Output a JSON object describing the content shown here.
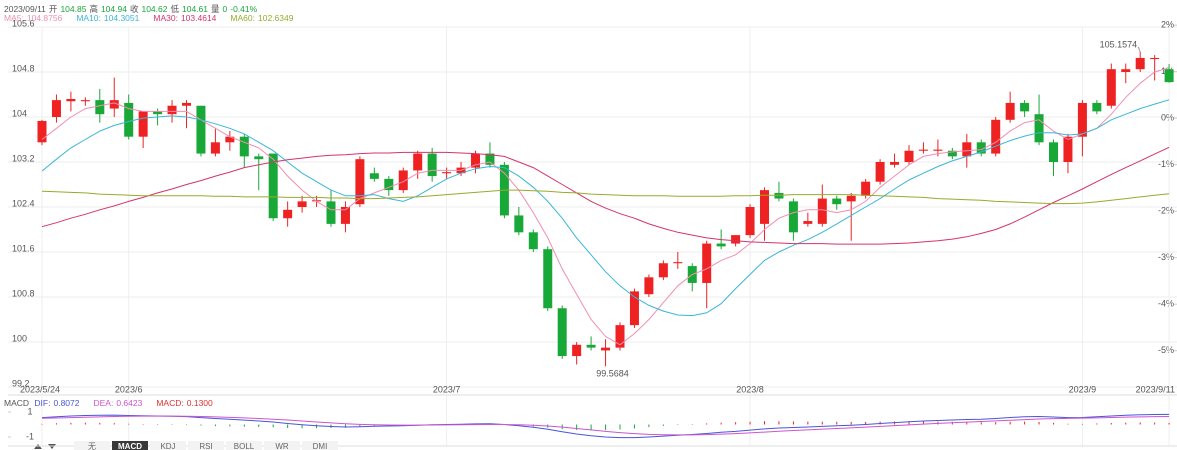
{
  "chart_data": {
    "type": "candlestick",
    "header": {
      "date": "2023/09/11",
      "open_label": "开",
      "high_label": "高",
      "close_label": "收",
      "low_label": "低",
      "volume_label": "量",
      "volume": 0,
      "change": {
        "value": -0.41,
        "label": "-0.41%"
      }
    },
    "categories": [
      "2023/5/24",
      null,
      null,
      null,
      null,
      null,
      "2023/6",
      null,
      null,
      null,
      null,
      null,
      null,
      null,
      null,
      null,
      null,
      null,
      null,
      null,
      null,
      null,
      null,
      null,
      null,
      null,
      null,
      null,
      "2023/7",
      null,
      null,
      null,
      null,
      null,
      null,
      null,
      null,
      null,
      null,
      null,
      null,
      null,
      null,
      null,
      null,
      null,
      null,
      null,
      null,
      "2023/8",
      null,
      null,
      null,
      null,
      null,
      null,
      null,
      null,
      null,
      null,
      null,
      null,
      null,
      null,
      null,
      null,
      null,
      null,
      null,
      null,
      null,
      null,
      "2023/9",
      null,
      null,
      null,
      null,
      null,
      "2023/9/11"
    ],
    "open": [
      103.55,
      104.0,
      104.28,
      104.28,
      104.3,
      104.15,
      104.25,
      103.65,
      104.1,
      104.05,
      104.2,
      104.2,
      103.35,
      103.55,
      103.65,
      103.3,
      103.35,
      102.2,
      102.4,
      102.5,
      102.5,
      102.1,
      102.45,
      103.0,
      102.9,
      102.7,
      103.05,
      103.35,
      103.0,
      103.0,
      103.1,
      103.35,
      103.15,
      102.25,
      101.95,
      101.65,
      100.6,
      99.75,
      99.95,
      99.85,
      99.9,
      100.3,
      100.85,
      101.15,
      101.4,
      101.35,
      101.05,
      101.75,
      101.75,
      101.9,
      102.1,
      102.65,
      102.5,
      102.1,
      102.1,
      102.55,
      102.5,
      102.6,
      102.85,
      103.15,
      103.2,
      103.4,
      103.4,
      103.4,
      103.3,
      103.55,
      103.35,
      103.95,
      104.25,
      104.05,
      103.55,
      103.2,
      103.65,
      104.25,
      104.2,
      104.8,
      104.85,
      105.03,
      104.85
    ],
    "high": [
      103.95,
      104.4,
      104.45,
      104.35,
      104.5,
      104.7,
      104.4,
      104.1,
      104.15,
      104.3,
      104.3,
      104.2,
      103.8,
      103.75,
      103.7,
      103.35,
      103.35,
      102.5,
      102.6,
      102.6,
      102.7,
      102.5,
      103.3,
      103.1,
      102.95,
      103.1,
      103.4,
      103.45,
      103.1,
      103.2,
      103.4,
      103.55,
      103.2,
      102.4,
      102.0,
      101.7,
      100.65,
      100.0,
      100.1,
      100.05,
      100.35,
      100.95,
      101.2,
      101.45,
      101.6,
      101.4,
      101.8,
      102.0,
      101.9,
      102.45,
      102.75,
      102.85,
      102.55,
      102.3,
      102.8,
      102.6,
      102.65,
      102.9,
      103.25,
      103.35,
      103.5,
      103.55,
      103.6,
      103.45,
      103.7,
      103.6,
      104.0,
      104.45,
      104.3,
      104.4,
      103.6,
      103.7,
      104.3,
      104.3,
      104.95,
      104.95,
      105.1574,
      105.1,
      104.94
    ],
    "low": [
      103.5,
      103.9,
      104.1,
      104.2,
      103.9,
      104.0,
      103.6,
      103.45,
      103.85,
      103.9,
      103.8,
      103.3,
      103.3,
      103.4,
      103.1,
      102.7,
      102.15,
      102.05,
      102.3,
      102.4,
      102.05,
      101.95,
      102.4,
      102.85,
      102.6,
      102.65,
      102.9,
      102.85,
      102.9,
      102.95,
      103.0,
      103.1,
      102.2,
      101.9,
      101.6,
      100.55,
      99.7,
      99.6,
      99.85,
      99.5684,
      99.85,
      100.25,
      100.8,
      101.1,
      101.3,
      100.9,
      100.6,
      101.65,
      101.7,
      101.85,
      101.8,
      102.5,
      101.8,
      102.05,
      102.05,
      102.35,
      101.8,
      102.55,
      102.8,
      103.1,
      103.15,
      103.35,
      103.3,
      103.25,
      103.1,
      103.3,
      103.3,
      103.9,
      104.0,
      103.5,
      102.95,
      103.0,
      103.3,
      104.05,
      104.15,
      104.6,
      104.8,
      104.65,
      104.61
    ],
    "close": [
      103.93,
      104.3,
      104.32,
      104.3,
      104.05,
      104.3,
      103.65,
      104.1,
      104.05,
      104.2,
      104.25,
      103.35,
      103.55,
      103.65,
      103.3,
      103.25,
      102.2,
      102.35,
      102.5,
      102.52,
      102.1,
      102.4,
      103.25,
      102.9,
      102.7,
      103.05,
      103.35,
      102.95,
      103.02,
      103.1,
      103.35,
      103.15,
      102.25,
      101.95,
      101.65,
      100.6,
      99.75,
      99.95,
      99.9,
      99.9,
      100.3,
      100.9,
      101.15,
      101.4,
      101.42,
      101.05,
      101.75,
      101.7,
      101.9,
      102.4,
      102.7,
      102.55,
      101.95,
      102.15,
      102.55,
      102.45,
      102.6,
      102.85,
      103.2,
      103.2,
      103.4,
      103.42,
      103.42,
      103.3,
      103.55,
      103.35,
      103.95,
      104.25,
      104.1,
      103.55,
      103.2,
      103.65,
      104.25,
      104.1,
      104.85,
      104.85,
      105.05,
      105.05,
      104.62
    ],
    "up_color": "#ee2222",
    "down_color": "#18a838",
    "series": [
      {
        "name": "MA5",
        "color": "#f08fb1",
        "values": [
          103.6,
          103.8,
          104.0,
          104.15,
          104.2,
          104.25,
          104.15,
          104.1,
          104.1,
          104.1,
          104.1,
          103.95,
          103.8,
          103.65,
          103.55,
          103.45,
          103.25,
          102.95,
          102.7,
          102.5,
          102.35,
          102.35,
          102.55,
          102.65,
          102.75,
          102.85,
          103.0,
          103.05,
          103.05,
          103.05,
          103.15,
          103.2,
          103.0,
          102.7,
          102.3,
          101.85,
          101.3,
          100.85,
          100.4,
          100.1,
          99.95,
          100.15,
          100.4,
          100.7,
          101.0,
          101.2,
          101.3,
          101.45,
          101.55,
          101.75,
          102.0,
          102.2,
          102.3,
          102.35,
          102.35,
          102.3,
          102.35,
          102.5,
          102.75,
          102.95,
          103.15,
          103.3,
          103.35,
          103.38,
          103.4,
          103.42,
          103.55,
          103.75,
          103.9,
          103.95,
          103.75,
          103.6,
          103.7,
          103.8,
          104.05,
          104.35,
          104.6,
          104.8,
          104.8756
        ]
      },
      {
        "name": "MA10",
        "color": "#3ab6d8",
        "values": [
          103.04,
          103.25,
          103.45,
          103.6,
          103.75,
          103.85,
          103.92,
          103.98,
          104.0,
          104.02,
          104.0,
          103.95,
          103.88,
          103.8,
          103.7,
          103.55,
          103.4,
          103.2,
          103.0,
          102.85,
          102.7,
          102.6,
          102.6,
          102.62,
          102.55,
          102.5,
          102.6,
          102.75,
          102.9,
          103.0,
          103.08,
          103.12,
          103.1,
          102.95,
          102.75,
          102.5,
          102.2,
          101.85,
          101.55,
          101.25,
          101.0,
          100.8,
          100.65,
          100.55,
          100.48,
          100.47,
          100.52,
          100.68,
          100.95,
          101.2,
          101.45,
          101.6,
          101.72,
          101.82,
          101.95,
          102.1,
          102.25,
          102.4,
          102.55,
          102.72,
          102.88,
          103.0,
          103.12,
          103.22,
          103.3,
          103.38,
          103.48,
          103.58,
          103.66,
          103.72,
          103.72,
          103.68,
          103.7,
          103.8,
          103.95,
          104.05,
          104.15,
          104.23,
          104.3051
        ]
      },
      {
        "name": "MA30",
        "color": "#d6336c",
        "values": [
          102.05,
          102.12,
          102.2,
          102.27,
          102.35,
          102.42,
          102.5,
          102.57,
          102.65,
          102.72,
          102.8,
          102.87,
          102.95,
          103.02,
          103.1,
          103.15,
          103.2,
          103.24,
          103.27,
          103.3,
          103.32,
          103.33,
          103.35,
          103.36,
          103.36,
          103.37,
          103.37,
          103.37,
          103.37,
          103.36,
          103.35,
          103.33,
          103.3,
          103.2,
          103.1,
          102.95,
          102.8,
          102.65,
          102.5,
          102.38,
          102.28,
          102.2,
          102.1,
          102.02,
          101.95,
          101.9,
          101.85,
          101.82,
          101.8,
          101.78,
          101.77,
          101.76,
          101.75,
          101.75,
          101.75,
          101.74,
          101.74,
          101.74,
          101.74,
          101.75,
          101.76,
          101.78,
          101.8,
          101.83,
          101.87,
          101.93,
          102.0,
          102.1,
          102.22,
          102.35,
          102.48,
          102.6,
          102.72,
          102.85,
          102.98,
          103.1,
          103.22,
          103.34,
          103.4614
        ]
      },
      {
        "name": "MA60",
        "color": "#9aaa2c",
        "values": [
          102.68,
          102.67,
          102.66,
          102.65,
          102.63,
          102.62,
          102.61,
          102.6,
          102.6,
          102.6,
          102.6,
          102.6,
          102.59,
          102.59,
          102.58,
          102.58,
          102.58,
          102.57,
          102.57,
          102.57,
          102.56,
          102.56,
          102.55,
          102.55,
          102.56,
          102.57,
          102.58,
          102.6,
          102.62,
          102.64,
          102.66,
          102.68,
          102.7,
          102.7,
          102.69,
          102.68,
          102.66,
          102.65,
          102.63,
          102.62,
          102.61,
          102.6,
          102.6,
          102.6,
          102.59,
          102.59,
          102.59,
          102.59,
          102.6,
          102.6,
          102.61,
          102.61,
          102.62,
          102.62,
          102.62,
          102.62,
          102.62,
          102.61,
          102.6,
          102.59,
          102.58,
          102.57,
          102.55,
          102.54,
          102.53,
          102.52,
          102.5,
          102.49,
          102.48,
          102.47,
          102.46,
          102.46,
          102.47,
          102.49,
          102.52,
          102.55,
          102.58,
          102.61,
          102.6349
        ]
      }
    ],
    "ylim": [
      99.2,
      105.6
    ],
    "yticks": [
      105.6,
      104.8,
      104,
      103.2,
      102.4,
      101.6,
      100.8,
      100,
      99.2
    ],
    "y2lim": [
      -5.78,
      1.96
    ],
    "y2ticks": [
      {
        "value": 2,
        "label": "2%"
      },
      {
        "value": 1,
        "label": "1%"
      },
      {
        "value": 0,
        "label": "0%"
      },
      {
        "value": -1,
        "label": "-1%"
      },
      {
        "value": -2,
        "label": "-2%"
      },
      {
        "value": -3,
        "label": "-3%"
      },
      {
        "value": -4,
        "label": "-4%"
      },
      {
        "value": -5,
        "label": "-5%"
      }
    ],
    "grid": true,
    "macd": {
      "title": "MACD",
      "series": [
        {
          "name": "DIF",
          "color": "#4a55d8",
          "values": [
            0.55,
            0.62,
            0.68,
            0.72,
            0.74,
            0.75,
            0.72,
            0.7,
            0.68,
            0.66,
            0.63,
            0.55,
            0.48,
            0.42,
            0.35,
            0.28,
            0.2,
            0.08,
            -0.02,
            -0.1,
            -0.16,
            -0.2,
            -0.18,
            -0.14,
            -0.12,
            -0.1,
            -0.06,
            -0.02,
            0.0,
            0.02,
            0.05,
            0.06,
            0.0,
            -0.1,
            -0.22,
            -0.38,
            -0.58,
            -0.76,
            -0.9,
            -1.0,
            -1.05,
            -1.05,
            -1.0,
            -0.93,
            -0.86,
            -0.8,
            -0.72,
            -0.62,
            -0.55,
            -0.45,
            -0.35,
            -0.28,
            -0.24,
            -0.2,
            -0.15,
            -0.1,
            -0.06,
            0.0,
            0.08,
            0.15,
            0.22,
            0.28,
            0.32,
            0.36,
            0.4,
            0.42,
            0.48,
            0.56,
            0.62,
            0.64,
            0.6,
            0.55,
            0.56,
            0.62,
            0.68,
            0.74,
            0.78,
            0.8,
            0.8072
          ]
        },
        {
          "name": "DEA",
          "color": "#cc55d0",
          "values": [
            0.5,
            0.52,
            0.55,
            0.58,
            0.61,
            0.64,
            0.66,
            0.67,
            0.67,
            0.67,
            0.66,
            0.64,
            0.61,
            0.57,
            0.53,
            0.48,
            0.42,
            0.36,
            0.28,
            0.2,
            0.13,
            0.06,
            0.01,
            -0.02,
            -0.04,
            -0.05,
            -0.05,
            -0.04,
            -0.03,
            -0.02,
            -0.01,
            0.0,
            0.0,
            -0.02,
            -0.06,
            -0.12,
            -0.21,
            -0.32,
            -0.43,
            -0.55,
            -0.65,
            -0.73,
            -0.79,
            -0.82,
            -0.83,
            -0.83,
            -0.81,
            -0.77,
            -0.73,
            -0.67,
            -0.61,
            -0.54,
            -0.48,
            -0.43,
            -0.37,
            -0.32,
            -0.27,
            -0.21,
            -0.15,
            -0.09,
            -0.03,
            0.03,
            0.09,
            0.14,
            0.19,
            0.24,
            0.29,
            0.34,
            0.39,
            0.44,
            0.47,
            0.49,
            0.51,
            0.53,
            0.56,
            0.59,
            0.61,
            0.63,
            0.6423
          ]
        }
      ],
      "histogram": {
        "name": "MACD",
        "color": "#e03030",
        "values": [
          0.05,
          0.1,
          0.13,
          0.14,
          0.13,
          0.11,
          0.06,
          0.03,
          0.01,
          -0.01,
          -0.03,
          -0.09,
          -0.13,
          -0.15,
          -0.18,
          -0.2,
          -0.22,
          -0.28,
          -0.3,
          -0.3,
          -0.29,
          -0.26,
          -0.19,
          -0.12,
          -0.08,
          -0.05,
          -0.01,
          0.02,
          0.03,
          0.04,
          0.06,
          0.06,
          0.0,
          -0.08,
          -0.16,
          -0.26,
          -0.37,
          -0.44,
          -0.47,
          -0.45,
          -0.4,
          -0.32,
          -0.21,
          -0.11,
          -0.03,
          0.03,
          0.09,
          0.15,
          0.18,
          0.22,
          0.26,
          0.26,
          0.24,
          0.23,
          0.22,
          0.22,
          0.21,
          0.21,
          0.23,
          0.24,
          0.25,
          0.25,
          0.23,
          0.22,
          0.21,
          0.18,
          0.19,
          0.22,
          0.23,
          0.2,
          0.13,
          0.06,
          0.05,
          0.09,
          0.12,
          0.15,
          0.17,
          0.15,
          0.13
        ],
        "value_labels": [
          null,
          null,
          null,
          null,
          null,
          null,
          null,
          null,
          null,
          null,
          null,
          null,
          null,
          null,
          null,
          null,
          null,
          null,
          null,
          null,
          null,
          null,
          null,
          null,
          null,
          null,
          null,
          null,
          null,
          null,
          null,
          null,
          null,
          null,
          null,
          null,
          null,
          null,
          null,
          null,
          null,
          null,
          null,
          null,
          null,
          null,
          null,
          null,
          null,
          null,
          null,
          null,
          null,
          null,
          null,
          null,
          null,
          null,
          null,
          null,
          null,
          null,
          null,
          null,
          null,
          null,
          null,
          null,
          null,
          null,
          null,
          null,
          null,
          null,
          null,
          null,
          null,
          null,
          "0.1300"
        ]
      },
      "ylim": [
        -1.64,
        1.56
      ],
      "yticks": [
        1,
        -1
      ]
    },
    "tabs": [
      "无",
      "MACD",
      "KDJ",
      "RSI",
      "BOLL",
      "WR",
      "DMI"
    ],
    "selected_tab": 1
  }
}
